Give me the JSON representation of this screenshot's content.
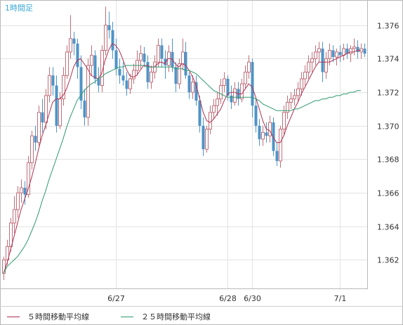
{
  "chart_data": {
    "type": "candlestick",
    "title": "1時間足",
    "x_tick_labels": [
      {
        "label": "6/27",
        "index": 32
      },
      {
        "label": "6/28",
        "index": 64
      },
      {
        "label": "6/30",
        "index": 71
      },
      {
        "label": "7/1",
        "index": 96
      }
    ],
    "y_ticks": [
      1.362,
      1.364,
      1.366,
      1.368,
      1.37,
      1.372,
      1.374,
      1.376
    ],
    "y_tick_labels": [
      "1.362",
      "1.364",
      "1.366",
      "1.368",
      "1.370",
      "1.372",
      "1.374",
      "1.376"
    ],
    "ylim": [
      1.3603,
      1.3775
    ],
    "grid": true,
    "up_color": "#ffffff",
    "down_color": "#4f93c7",
    "candles": [
      [
        1.3612,
        1.3622,
        1.3608,
        1.362
      ],
      [
        1.362,
        1.3632,
        1.3617,
        1.3628
      ],
      [
        1.3628,
        1.3645,
        1.3625,
        1.3642
      ],
      [
        1.3642,
        1.3658,
        1.3636,
        1.365
      ],
      [
        1.365,
        1.3664,
        1.3645,
        1.366
      ],
      [
        1.366,
        1.3668,
        1.3654,
        1.3663
      ],
      [
        1.3663,
        1.3667,
        1.3653,
        1.3659
      ],
      [
        1.3659,
        1.3682,
        1.3657,
        1.3678
      ],
      [
        1.3678,
        1.3697,
        1.3674,
        1.3694
      ],
      [
        1.3694,
        1.37,
        1.3685,
        1.369
      ],
      [
        1.369,
        1.3712,
        1.3688,
        1.3708
      ],
      [
        1.3708,
        1.3716,
        1.3696,
        1.3702
      ],
      [
        1.3702,
        1.3722,
        1.3698,
        1.3718
      ],
      [
        1.3718,
        1.3735,
        1.3714,
        1.373
      ],
      [
        1.373,
        1.3735,
        1.3718,
        1.3724
      ],
      [
        1.3724,
        1.373,
        1.3696,
        1.37
      ],
      [
        1.37,
        1.372,
        1.3698,
        1.3716
      ],
      [
        1.3716,
        1.3735,
        1.3712,
        1.373
      ],
      [
        1.373,
        1.3748,
        1.3728,
        1.3744
      ],
      [
        1.3744,
        1.3766,
        1.374,
        1.3752
      ],
      [
        1.3752,
        1.3756,
        1.3742,
        1.3749
      ],
      [
        1.3749,
        1.3752,
        1.3728,
        1.3735
      ],
      [
        1.3735,
        1.3742,
        1.371,
        1.3715
      ],
      [
        1.3715,
        1.3722,
        1.37,
        1.3705
      ],
      [
        1.3705,
        1.374,
        1.37,
        1.3736
      ],
      [
        1.3736,
        1.3748,
        1.373,
        1.3742
      ],
      [
        1.3742,
        1.3745,
        1.3725,
        1.3728
      ],
      [
        1.3728,
        1.3735,
        1.372,
        1.3724
      ],
      [
        1.3724,
        1.3748,
        1.372,
        1.3745
      ],
      [
        1.3745,
        1.3771,
        1.3742,
        1.376
      ],
      [
        1.376,
        1.3768,
        1.3752,
        1.3757
      ],
      [
        1.3757,
        1.3762,
        1.374,
        1.3745
      ],
      [
        1.3745,
        1.3752,
        1.373,
        1.3734
      ],
      [
        1.3734,
        1.374,
        1.3725,
        1.373
      ],
      [
        1.373,
        1.3738,
        1.3724,
        1.3727
      ],
      [
        1.3727,
        1.3732,
        1.3718,
        1.3722
      ],
      [
        1.3722,
        1.3731,
        1.3719,
        1.3728
      ],
      [
        1.3728,
        1.3737,
        1.3725,
        1.3733
      ],
      [
        1.3733,
        1.3745,
        1.373,
        1.3739
      ],
      [
        1.3739,
        1.3748,
        1.3734,
        1.3743
      ],
      [
        1.3743,
        1.3747,
        1.3735,
        1.3738
      ],
      [
        1.3738,
        1.3742,
        1.3722,
        1.3726
      ],
      [
        1.3726,
        1.3736,
        1.3722,
        1.3732
      ],
      [
        1.3732,
        1.3742,
        1.3728,
        1.3738
      ],
      [
        1.3738,
        1.3752,
        1.3735,
        1.3748
      ],
      [
        1.3748,
        1.3752,
        1.3735,
        1.374
      ],
      [
        1.374,
        1.3745,
        1.3728,
        1.3736
      ],
      [
        1.3736,
        1.3748,
        1.3732,
        1.3744
      ],
      [
        1.3744,
        1.3752,
        1.3732,
        1.3735
      ],
      [
        1.3735,
        1.3738,
        1.372,
        1.3725
      ],
      [
        1.3725,
        1.374,
        1.3722,
        1.3737
      ],
      [
        1.3737,
        1.3752,
        1.3733,
        1.3744
      ],
      [
        1.3744,
        1.375,
        1.3728,
        1.373
      ],
      [
        1.373,
        1.3732,
        1.3716,
        1.372
      ],
      [
        1.372,
        1.373,
        1.3716,
        1.3726
      ],
      [
        1.3726,
        1.373,
        1.3712,
        1.3715
      ],
      [
        1.3715,
        1.3718,
        1.3696,
        1.37
      ],
      [
        1.37,
        1.3705,
        1.3682,
        1.3686
      ],
      [
        1.3686,
        1.37,
        1.3684,
        1.3698
      ],
      [
        1.3698,
        1.3712,
        1.3695,
        1.3708
      ],
      [
        1.3708,
        1.3716,
        1.3704,
        1.3712
      ],
      [
        1.3712,
        1.372,
        1.3706,
        1.3716
      ],
      [
        1.3716,
        1.3728,
        1.3713,
        1.3724
      ],
      [
        1.3724,
        1.3732,
        1.372,
        1.3728
      ],
      [
        1.3728,
        1.373,
        1.3715,
        1.3718
      ],
      [
        1.3718,
        1.3724,
        1.371,
        1.3714
      ],
      [
        1.3714,
        1.3726,
        1.3712,
        1.3722
      ],
      [
        1.3722,
        1.3726,
        1.3712,
        1.3716
      ],
      [
        1.3716,
        1.3728,
        1.3714,
        1.3725
      ],
      [
        1.3725,
        1.3736,
        1.3722,
        1.3732
      ],
      [
        1.3732,
        1.3742,
        1.3728,
        1.3738
      ],
      [
        1.3738,
        1.374,
        1.3705,
        1.3712
      ],
      [
        1.3712,
        1.3716,
        1.3696,
        1.37
      ],
      [
        1.37,
        1.3704,
        1.3688,
        1.3692
      ],
      [
        1.3692,
        1.37,
        1.3688,
        1.3696
      ],
      [
        1.3696,
        1.3702,
        1.369,
        1.3694
      ],
      [
        1.3694,
        1.3706,
        1.369,
        1.3702
      ],
      [
        1.3702,
        1.3705,
        1.3682,
        1.3685
      ],
      [
        1.3685,
        1.369,
        1.3676,
        1.3679
      ],
      [
        1.3679,
        1.37,
        1.3675,
        1.3698
      ],
      [
        1.3698,
        1.3712,
        1.3694,
        1.3708
      ],
      [
        1.3708,
        1.3718,
        1.3704,
        1.3714
      ],
      [
        1.3714,
        1.372,
        1.371,
        1.3716
      ],
      [
        1.3716,
        1.3722,
        1.3712,
        1.3718
      ],
      [
        1.3718,
        1.3726,
        1.3714,
        1.3722
      ],
      [
        1.3722,
        1.3732,
        1.3718,
        1.3728
      ],
      [
        1.3728,
        1.3736,
        1.3724,
        1.3732
      ],
      [
        1.3732,
        1.3742,
        1.3728,
        1.3738
      ],
      [
        1.3738,
        1.3744,
        1.3732,
        1.374
      ],
      [
        1.374,
        1.3748,
        1.3736,
        1.3744
      ],
      [
        1.3744,
        1.375,
        1.3738,
        1.3746
      ],
      [
        1.3746,
        1.375,
        1.3726,
        1.3732
      ],
      [
        1.3732,
        1.3744,
        1.3728,
        1.374
      ],
      [
        1.374,
        1.3749,
        1.3736,
        1.3745
      ],
      [
        1.3745,
        1.3748,
        1.3738,
        1.3741
      ],
      [
        1.3741,
        1.3746,
        1.3736,
        1.3744
      ],
      [
        1.3744,
        1.3748,
        1.3738,
        1.3742
      ],
      [
        1.3742,
        1.3749,
        1.3739,
        1.3746
      ],
      [
        1.3746,
        1.3749,
        1.374,
        1.3743
      ],
      [
        1.3743,
        1.3748,
        1.3738,
        1.3746
      ],
      [
        1.3746,
        1.3752,
        1.3742,
        1.3747
      ],
      [
        1.3747,
        1.3751,
        1.374,
        1.3744
      ],
      [
        1.3744,
        1.3749,
        1.374,
        1.3746
      ],
      [
        1.3746,
        1.3749,
        1.3741,
        1.3743
      ]
    ],
    "series": [
      {
        "name": "５時間移動平均線",
        "color": "#b03050",
        "values": [
          1.3612,
          1.3618,
          1.3626,
          1.3634,
          1.3642,
          1.365,
          1.3656,
          1.3662,
          1.3669,
          1.3677,
          1.3686,
          1.3694,
          1.37,
          1.3707,
          1.3714,
          1.3716,
          1.3716,
          1.3718,
          1.3722,
          1.3728,
          1.3735,
          1.3739,
          1.374,
          1.3737,
          1.3734,
          1.373,
          1.3729,
          1.3728,
          1.3731,
          1.3739,
          1.3745,
          1.3749,
          1.3748,
          1.3745,
          1.374,
          1.3734,
          1.373,
          1.3729,
          1.373,
          1.3733,
          1.3736,
          1.3736,
          1.3735,
          1.3735,
          1.3737,
          1.3738,
          1.3737,
          1.374,
          1.374,
          1.3737,
          1.3735,
          1.3737,
          1.3736,
          1.3733,
          1.3729,
          1.3724,
          1.3716,
          1.3708,
          1.3703,
          1.3702,
          1.3704,
          1.3707,
          1.371,
          1.3715,
          1.3719,
          1.372,
          1.372,
          1.3719,
          1.3719,
          1.3722,
          1.3725,
          1.3723,
          1.3717,
          1.371,
          1.3703,
          1.3698,
          1.3697,
          1.3693,
          1.369,
          1.369,
          1.3694,
          1.37,
          1.3705,
          1.371,
          1.3714,
          1.3719,
          1.3723,
          1.3727,
          1.3731,
          1.3735,
          1.3738,
          1.3738,
          1.3738,
          1.3738,
          1.3739,
          1.374,
          1.3741,
          1.3742,
          1.3743,
          1.3744,
          1.3744,
          1.3745,
          1.3745
        ]
      },
      {
        "name": "２５時間移動平均線",
        "color": "#2e9a6e",
        "values": [
          1.3612,
          1.3616,
          1.3618,
          1.362,
          1.3622,
          1.3625,
          1.3628,
          1.3632,
          1.3637,
          1.3642,
          1.3648,
          1.3655,
          1.3661,
          1.3668,
          1.3674,
          1.368,
          1.3686,
          1.3692,
          1.3699,
          1.3705,
          1.371,
          1.3715,
          1.3718,
          1.3721,
          1.3723,
          1.3725,
          1.3726,
          1.3728,
          1.3729,
          1.3731,
          1.3732,
          1.3733,
          1.3734,
          1.3735,
          1.3735,
          1.3736,
          1.3736,
          1.3736,
          1.3736,
          1.3736,
          1.3736,
          1.3735,
          1.3735,
          1.3735,
          1.3735,
          1.3735,
          1.3735,
          1.3735,
          1.3735,
          1.3734,
          1.3734,
          1.3734,
          1.3733,
          1.3733,
          1.3732,
          1.3731,
          1.3729,
          1.3727,
          1.3725,
          1.3723,
          1.3721,
          1.372,
          1.3719,
          1.3718,
          1.3717,
          1.3717,
          1.3717,
          1.3717,
          1.3717,
          1.3717,
          1.3717,
          1.3717,
          1.3716,
          1.3715,
          1.3713,
          1.3712,
          1.3711,
          1.371,
          1.3709,
          1.3709,
          1.3709,
          1.3709,
          1.3709,
          1.371,
          1.371,
          1.3711,
          1.3712,
          1.3713,
          1.3714,
          1.3715,
          1.3715,
          1.3716,
          1.3716,
          1.3717,
          1.3717,
          1.3718,
          1.3718,
          1.3719,
          1.3719,
          1.372,
          1.372,
          1.3721,
          1.3721
        ]
      }
    ]
  }
}
